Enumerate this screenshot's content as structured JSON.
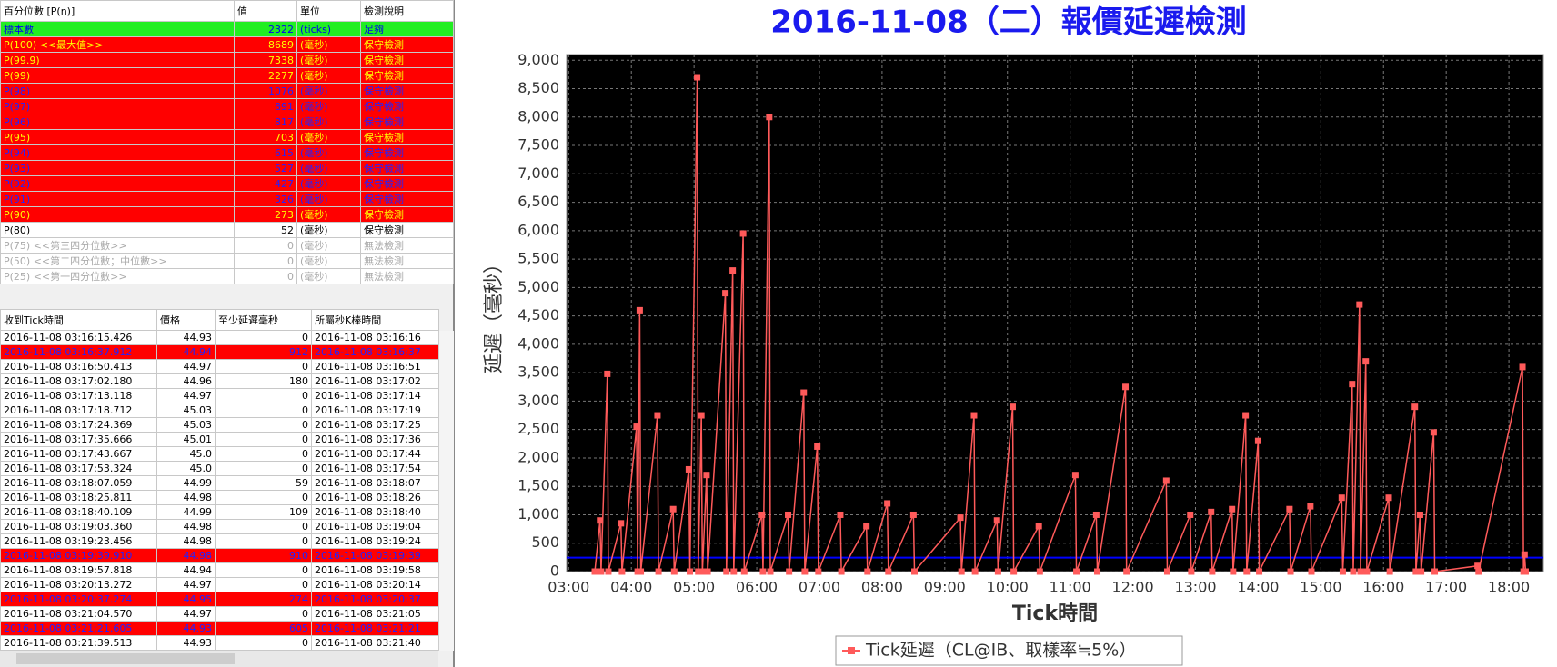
{
  "percentiles": {
    "columns": [
      "百分位數 [P(n)]",
      "值",
      "單位",
      "檢測說明"
    ],
    "rows": [
      {
        "cells": [
          "標本數",
          2322,
          "(ticks)",
          "足夠"
        ],
        "bg": "#22ee22",
        "fg": "#0000ee",
        "bold": false
      },
      {
        "cells": [
          "P(100) <<最大值>>",
          8689,
          "(毫秒)",
          "保守檢測"
        ],
        "bg": "#ff0000",
        "fg": "#ffff00",
        "bold": true
      },
      {
        "cells": [
          "P(99.9)",
          7338,
          "(毫秒)",
          "保守檢測"
        ],
        "bg": "#ff0000",
        "fg": "#ffff00",
        "bold": true
      },
      {
        "cells": [
          "P(99)",
          2277,
          "(毫秒)",
          "保守檢測"
        ],
        "bg": "#ff0000",
        "fg": "#ffff00",
        "bold": true
      },
      {
        "cells": [
          "P(98)",
          1076,
          "(毫秒)",
          "保守檢測"
        ],
        "bg": "#ff0000",
        "fg": "#2222ff",
        "bold": false
      },
      {
        "cells": [
          "P(97)",
          891,
          "(毫秒)",
          "保守檢測"
        ],
        "bg": "#ff0000",
        "fg": "#2222ff",
        "bold": false
      },
      {
        "cells": [
          "P(96)",
          817,
          "(毫秒)",
          "保守檢測"
        ],
        "bg": "#ff0000",
        "fg": "#2222ff",
        "bold": false
      },
      {
        "cells": [
          "P(95)",
          703,
          "(毫秒)",
          "保守檢測"
        ],
        "bg": "#ff0000",
        "fg": "#ffff00",
        "bold": true
      },
      {
        "cells": [
          "P(94)",
          615,
          "(毫秒)",
          "保守檢測"
        ],
        "bg": "#ff0000",
        "fg": "#2222ff",
        "bold": false
      },
      {
        "cells": [
          "P(93)",
          527,
          "(毫秒)",
          "保守檢測"
        ],
        "bg": "#ff0000",
        "fg": "#2222ff",
        "bold": false
      },
      {
        "cells": [
          "P(92)",
          427,
          "(毫秒)",
          "保守檢測"
        ],
        "bg": "#ff0000",
        "fg": "#2222ff",
        "bold": false
      },
      {
        "cells": [
          "P(91)",
          326,
          "(毫秒)",
          "保守檢測"
        ],
        "bg": "#ff0000",
        "fg": "#2222ff",
        "bold": false
      },
      {
        "cells": [
          "P(90)",
          273,
          "(毫秒)",
          "保守檢測"
        ],
        "bg": "#ff0000",
        "fg": "#ffff00",
        "bold": true
      },
      {
        "cells": [
          "P(80)",
          52,
          "(毫秒)",
          "保守檢測"
        ],
        "bg": "#ffffff",
        "fg": "#000000",
        "bold": false
      },
      {
        "cells": [
          "P(75) <<第三四分位數>>",
          0,
          "(毫秒)",
          "無法檢測"
        ],
        "bg": "#ffffff",
        "fg": "#aaaaaa",
        "bold": false
      },
      {
        "cells": [
          "P(50) <<第二四分位數；中位數>>",
          0,
          "(毫秒)",
          "無法檢測"
        ],
        "bg": "#ffffff",
        "fg": "#aaaaaa",
        "bold": false
      },
      {
        "cells": [
          "P(25) <<第一四分位數>>",
          0,
          "(毫秒)",
          "無法檢測"
        ],
        "bg": "#ffffff",
        "fg": "#aaaaaa",
        "bold": false
      }
    ]
  },
  "ticks": {
    "columns": [
      "收到Tick時間",
      "價格",
      "至少延遲毫秒",
      "所屬秒K棒時間"
    ],
    "highlighted_rows": [
      1,
      15,
      18,
      20
    ],
    "rows": [
      [
        "2016-11-08 03:16:15.426",
        "44.93",
        0,
        "2016-11-08 03:16:16"
      ],
      [
        "2016-11-08 03:16:37.912",
        "44.94",
        912,
        "2016-11-08 03:16:37"
      ],
      [
        "2016-11-08 03:16:50.413",
        "44.97",
        0,
        "2016-11-08 03:16:51"
      ],
      [
        "2016-11-08 03:17:02.180",
        "44.96",
        180,
        "2016-11-08 03:17:02"
      ],
      [
        "2016-11-08 03:17:13.118",
        "44.97",
        0,
        "2016-11-08 03:17:14"
      ],
      [
        "2016-11-08 03:17:18.712",
        "45.03",
        0,
        "2016-11-08 03:17:19"
      ],
      [
        "2016-11-08 03:17:24.369",
        "45.03",
        0,
        "2016-11-08 03:17:25"
      ],
      [
        "2016-11-08 03:17:35.666",
        "45.01",
        0,
        "2016-11-08 03:17:36"
      ],
      [
        "2016-11-08 03:17:43.667",
        "45.0",
        0,
        "2016-11-08 03:17:44"
      ],
      [
        "2016-11-08 03:17:53.324",
        "45.0",
        0,
        "2016-11-08 03:17:54"
      ],
      [
        "2016-11-08 03:18:07.059",
        "44.99",
        59,
        "2016-11-08 03:18:07"
      ],
      [
        "2016-11-08 03:18:25.811",
        "44.98",
        0,
        "2016-11-08 03:18:26"
      ],
      [
        "2016-11-08 03:18:40.109",
        "44.99",
        109,
        "2016-11-08 03:18:40"
      ],
      [
        "2016-11-08 03:19:03.360",
        "44.98",
        0,
        "2016-11-08 03:19:04"
      ],
      [
        "2016-11-08 03:19:23.456",
        "44.98",
        0,
        "2016-11-08 03:19:24"
      ],
      [
        "2016-11-08 03:19:39.910",
        "44.98",
        910,
        "2016-11-08 03:19:39"
      ],
      [
        "2016-11-08 03:19:57.818",
        "44.94",
        0,
        "2016-11-08 03:19:58"
      ],
      [
        "2016-11-08 03:20:13.272",
        "44.97",
        0,
        "2016-11-08 03:20:14"
      ],
      [
        "2016-11-08 03:20:37.274",
        "44.95",
        274,
        "2016-11-08 03:20:37"
      ],
      [
        "2016-11-08 03:21:04.570",
        "44.97",
        0,
        "2016-11-08 03:21:05"
      ],
      [
        "2016-11-08 03:21:21.605",
        "44.93",
        605,
        "2016-11-08 03:21:21"
      ],
      [
        "2016-11-08 03:21:39.513",
        "44.93",
        0,
        "2016-11-08 03:21:40"
      ]
    ]
  },
  "chart_data": {
    "type": "line",
    "title": "2016-11-08（二）報價延遲檢測",
    "x_label": "Tick時間",
    "y_label": "延遲（毫秒）",
    "x": [
      "03:25",
      "03:30",
      "03:31",
      "03:37",
      "03:38",
      "03:50",
      "03:51",
      "04:05",
      "04:06",
      "04:08",
      "04:09",
      "04:25",
      "04:26",
      "04:40",
      "04:41",
      "04:55",
      "04:56",
      "05:03",
      "05:04",
      "05:07",
      "05:08",
      "05:12",
      "05:13",
      "05:30",
      "05:31",
      "05:37",
      "05:38",
      "05:47",
      "05:48",
      "06:05",
      "06:06",
      "06:12",
      "06:13",
      "06:30",
      "06:31",
      "06:45",
      "06:46",
      "06:58",
      "06:59",
      "07:20",
      "07:21",
      "07:45",
      "07:46",
      "08:05",
      "08:06",
      "08:30",
      "08:31",
      "09:15",
      "09:16",
      "09:28",
      "09:29",
      "09:50",
      "09:51",
      "10:05",
      "10:06",
      "10:30",
      "10:31",
      "11:05",
      "11:06",
      "11:25",
      "11:26",
      "11:53",
      "11:54",
      "12:32",
      "12:33",
      "12:55",
      "12:56",
      "13:15",
      "13:16",
      "13:35",
      "13:36",
      "13:48",
      "13:49",
      "14:00",
      "14:01",
      "14:30",
      "14:31",
      "14:50",
      "14:51",
      "15:20",
      "15:21",
      "15:30",
      "15:31",
      "15:37",
      "15:38",
      "15:43",
      "15:44",
      "16:05",
      "16:06",
      "16:30",
      "16:31",
      "16:35",
      "16:36",
      "16:48",
      "16:49",
      "17:30",
      "17:31",
      "18:13",
      "18:14",
      "18:15",
      "18:16"
    ],
    "series": [
      {
        "name": "Tick延遲（CL@IB、取樣率≒5%）",
        "color": "#ff5a5a",
        "values": [
          0,
          900,
          0,
          3480,
          0,
          850,
          0,
          2550,
          0,
          4600,
          0,
          2750,
          0,
          1100,
          0,
          1800,
          0,
          8700,
          0,
          2750,
          0,
          1700,
          0,
          4900,
          0,
          5300,
          0,
          5950,
          0,
          1000,
          0,
          8000,
          0,
          1000,
          0,
          3150,
          0,
          2200,
          0,
          1000,
          0,
          800,
          0,
          1200,
          0,
          1000,
          0,
          950,
          0,
          2750,
          0,
          900,
          0,
          2900,
          0,
          800,
          0,
          1700,
          0,
          1000,
          0,
          3250,
          0,
          1600,
          0,
          1000,
          0,
          1050,
          0,
          1100,
          0,
          2750,
          0,
          2300,
          0,
          1100,
          0,
          1150,
          0,
          1300,
          0,
          3300,
          0,
          4700,
          0,
          3700,
          0,
          1300,
          0,
          2900,
          0,
          1000,
          0,
          2450,
          0,
          100,
          0,
          3600,
          0,
          300,
          0
        ]
      }
    ],
    "hline": 245,
    "hline_color": "#0000ff",
    "plot_bg": "#000000",
    "grid": true,
    "xlim": [
      "02:58",
      "18:33"
    ],
    "xticks": [
      "03:00",
      "04:00",
      "05:00",
      "06:00",
      "07:00",
      "08:00",
      "09:00",
      "10:00",
      "11:00",
      "12:00",
      "13:00",
      "14:00",
      "15:00",
      "16:00",
      "17:00",
      "18:00"
    ],
    "ylim": [
      0,
      9100
    ],
    "yticks": [
      0,
      500,
      {
        "value": 1000,
        "label": "1,000"
      },
      {
        "value": 1500,
        "label": "1,500"
      },
      {
        "value": 2000,
        "label": "2,000"
      },
      {
        "value": 2500,
        "label": "2,500"
      },
      {
        "value": 3000,
        "label": "3,000"
      },
      {
        "value": 3500,
        "label": "3,500"
      },
      {
        "value": 4000,
        "label": "4,000"
      },
      {
        "value": 4500,
        "label": "4,500"
      },
      {
        "value": 5000,
        "label": "5,000"
      },
      {
        "value": 5500,
        "label": "5,500"
      },
      {
        "value": 6000,
        "label": "6,000"
      },
      {
        "value": 6500,
        "label": "6,500"
      },
      {
        "value": 7000,
        "label": "7,000"
      },
      {
        "value": 7500,
        "label": "7,500"
      },
      {
        "value": 8000,
        "label": "8,000"
      },
      {
        "value": 8500,
        "label": "8,500"
      },
      {
        "value": 9000,
        "label": "9,000"
      }
    ]
  }
}
